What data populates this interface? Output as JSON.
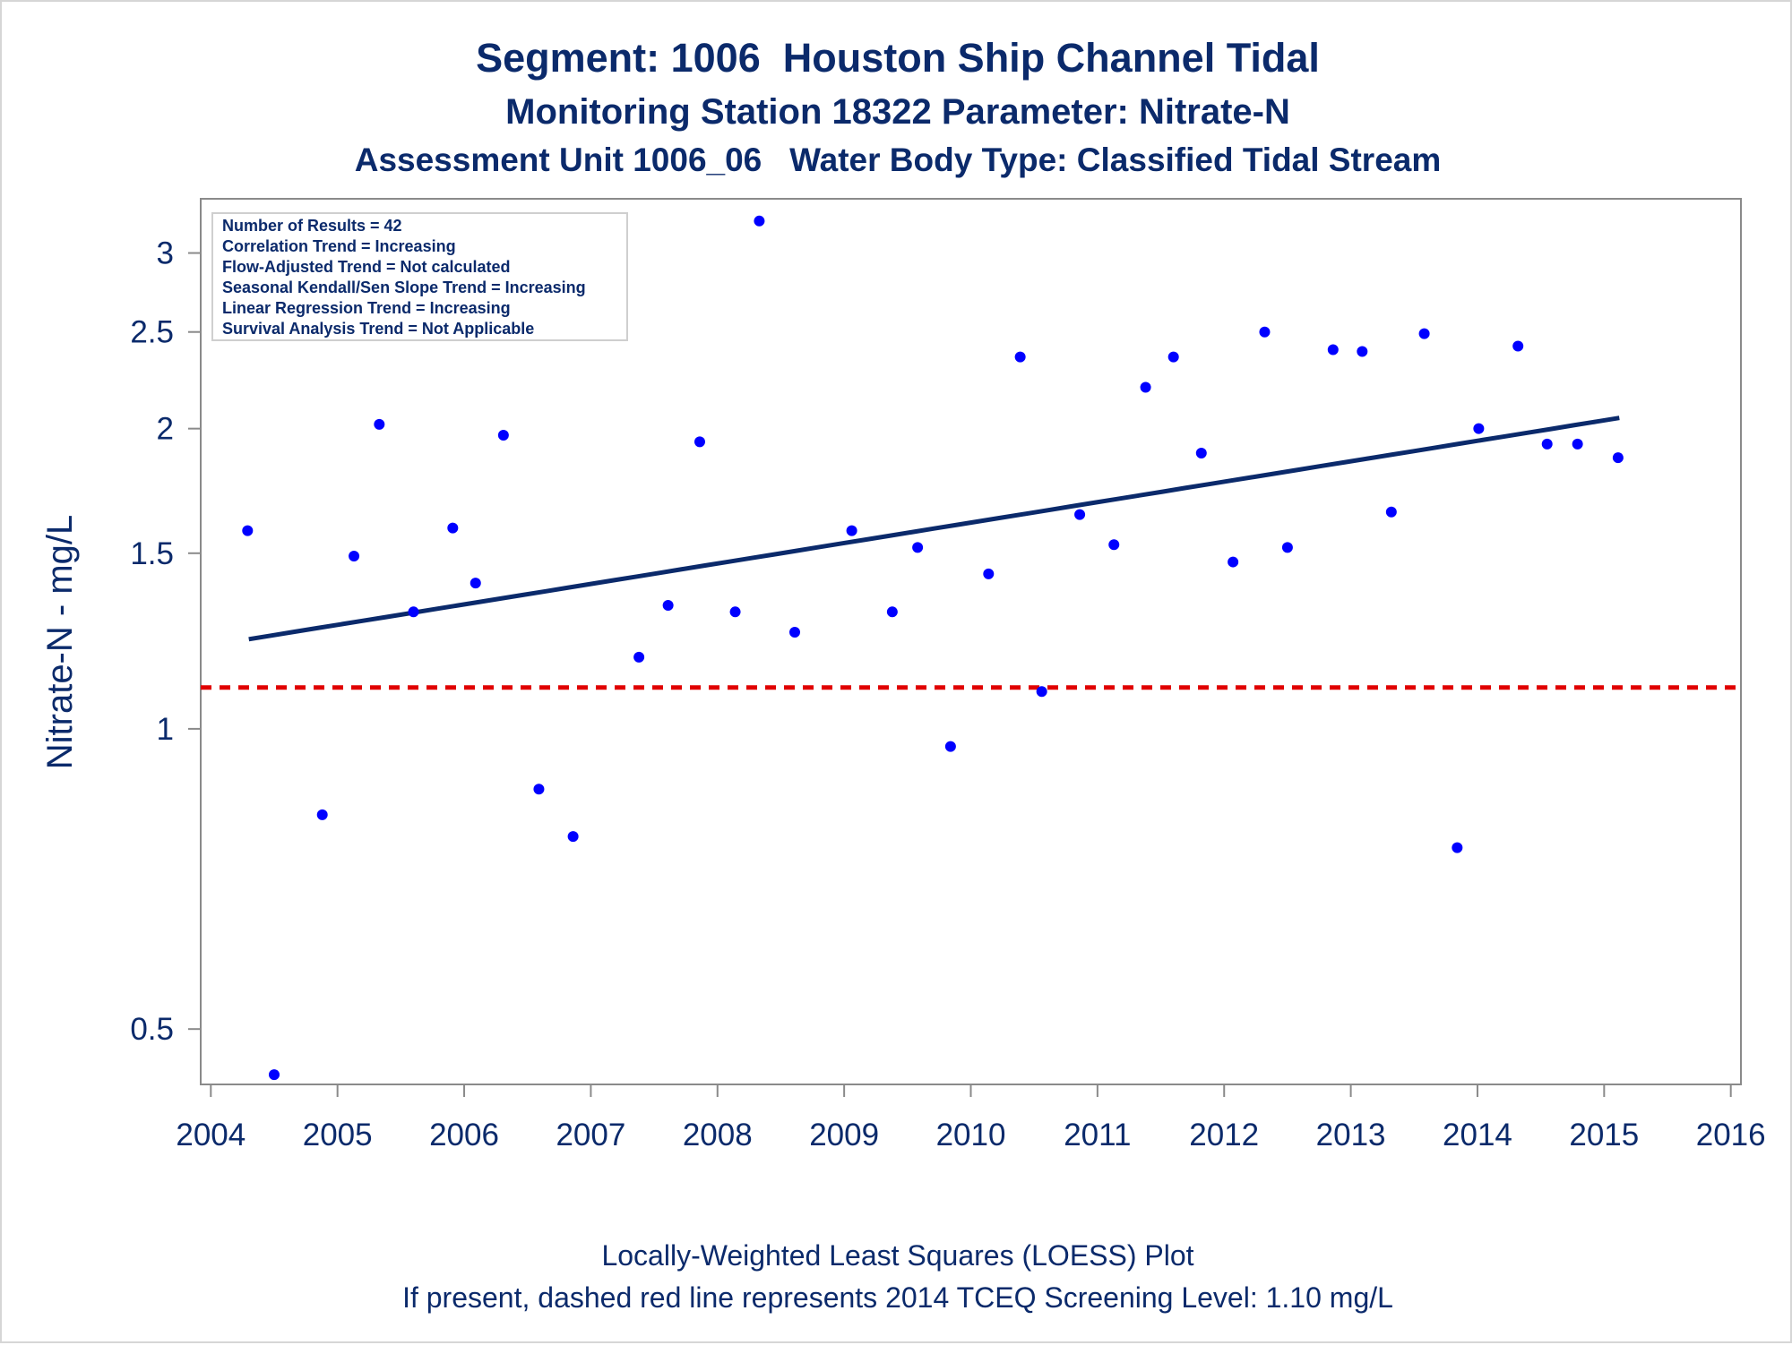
{
  "chart_data": {
    "type": "scatter",
    "title": "Segment: 1006  Houston Ship Channel Tidal",
    "subtitle": "Monitoring Station 18322 Parameter: Nitrate-N",
    "subtitle2": "Assessment Unit 1006_06   Water Body Type: Classified Tidal Stream",
    "xlabel": "",
    "ylabel": "Nitrate-N - mg/L",
    "y_scale": "log",
    "xlim": [
      2003.92,
      2016.08
    ],
    "ylim": [
      0.44,
      3.4
    ],
    "x_ticks": [
      2004,
      2005,
      2006,
      2007,
      2008,
      2009,
      2010,
      2011,
      2012,
      2013,
      2014,
      2015,
      2016
    ],
    "x_tick_labels": [
      "2004",
      "2005",
      "2006",
      "2007",
      "2008",
      "2009",
      "2010",
      "2011",
      "2012",
      "2013",
      "2014",
      "2015",
      "2016"
    ],
    "y_ticks": [
      0.5,
      1,
      1.5,
      2,
      2.5,
      3
    ],
    "y_tick_labels": [
      "0.5",
      "1",
      "1.5",
      "2",
      "2.5",
      "3"
    ],
    "grid": false,
    "stats_box": [
      "Number of Results = 42",
      "Correlation Trend = Increasing",
      "Flow-Adjusted Trend = Not calculated",
      "Seasonal Kendall/Sen Slope Trend = Increasing",
      "Linear Regression Trend = Increasing",
      "Survival Analysis Trend = Not Applicable"
    ],
    "screening_level": 1.1,
    "footnote1": "Locally-Weighted Least Squares (LOESS) Plot",
    "footnote2": "If present, dashed red line represents 2014 TCEQ Screening Level: 1.10 mg/L",
    "points": [
      {
        "x": 2004.29,
        "y": 1.58
      },
      {
        "x": 2004.5,
        "y": 0.45
      },
      {
        "x": 2004.88,
        "y": 0.82
      },
      {
        "x": 2005.13,
        "y": 1.49
      },
      {
        "x": 2005.33,
        "y": 2.02
      },
      {
        "x": 2005.6,
        "y": 1.31
      },
      {
        "x": 2005.91,
        "y": 1.59
      },
      {
        "x": 2006.09,
        "y": 1.4
      },
      {
        "x": 2006.31,
        "y": 1.97
      },
      {
        "x": 2006.59,
        "y": 0.87
      },
      {
        "x": 2006.86,
        "y": 0.78
      },
      {
        "x": 2007.38,
        "y": 1.18
      },
      {
        "x": 2007.61,
        "y": 1.33
      },
      {
        "x": 2007.86,
        "y": 1.94
      },
      {
        "x": 2008.14,
        "y": 1.31
      },
      {
        "x": 2008.33,
        "y": 3.23
      },
      {
        "x": 2008.61,
        "y": 1.25
      },
      {
        "x": 2009.06,
        "y": 1.58
      },
      {
        "x": 2009.38,
        "y": 1.31
      },
      {
        "x": 2009.58,
        "y": 1.52
      },
      {
        "x": 2009.84,
        "y": 0.96
      },
      {
        "x": 2010.14,
        "y": 1.43
      },
      {
        "x": 2010.39,
        "y": 2.36
      },
      {
        "x": 2010.56,
        "y": 1.09
      },
      {
        "x": 2010.86,
        "y": 1.64
      },
      {
        "x": 2011.13,
        "y": 1.53
      },
      {
        "x": 2011.38,
        "y": 2.2
      },
      {
        "x": 2011.6,
        "y": 2.36
      },
      {
        "x": 2011.82,
        "y": 1.89
      },
      {
        "x": 2012.07,
        "y": 1.47
      },
      {
        "x": 2012.32,
        "y": 2.5
      },
      {
        "x": 2012.5,
        "y": 1.52
      },
      {
        "x": 2012.86,
        "y": 2.4
      },
      {
        "x": 2013.09,
        "y": 2.39
      },
      {
        "x": 2013.32,
        "y": 1.65
      },
      {
        "x": 2013.58,
        "y": 2.49
      },
      {
        "x": 2013.84,
        "y": 0.76
      },
      {
        "x": 2014.01,
        "y": 2.0
      },
      {
        "x": 2014.32,
        "y": 2.42
      },
      {
        "x": 2014.55,
        "y": 1.93
      },
      {
        "x": 2014.79,
        "y": 1.93
      },
      {
        "x": 2015.11,
        "y": 1.87
      }
    ],
    "loess": {
      "x": [
        2004.3,
        2015.12
      ],
      "y": [
        1.23,
        2.05
      ]
    },
    "colors": {
      "text": "#0b2a6b",
      "points": "#0000ff",
      "trend": "#0b2a6b",
      "screening": "#e00000",
      "frame": "#8a8a8a"
    }
  }
}
